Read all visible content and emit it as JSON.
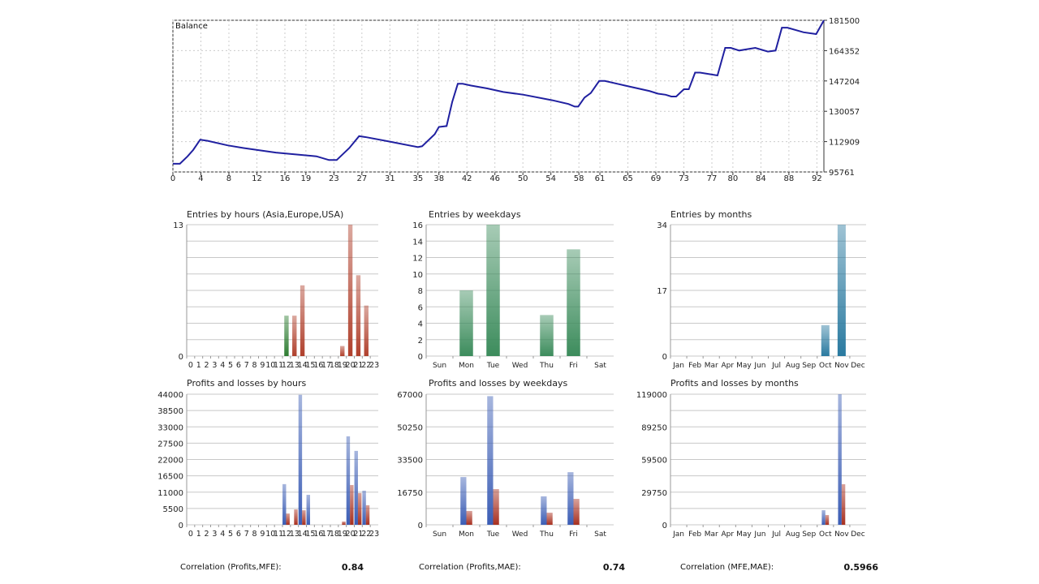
{
  "colors": {
    "balance_line": "#2020a0",
    "profit": "#3b5db5",
    "loss": "#a83020",
    "entries_asia": "#2e7d32",
    "entries_other": "#b0402c",
    "weekday_bar": "#3c8c5c",
    "month_bar": "#2a7aa0"
  },
  "correlations": [
    {
      "label": "Correlation (Profits,MFE):",
      "value": "0.84"
    },
    {
      "label": "Correlation (Profits,MAE):",
      "value": "0.74"
    },
    {
      "label": "Correlation (MFE,MAE):",
      "value": "0.5966"
    }
  ],
  "chart_data": [
    {
      "id": "balance",
      "type": "line",
      "title": "Balance",
      "grid": true,
      "xlim": [
        0,
        93
      ],
      "ylim": [
        95761,
        181500
      ],
      "xticks": [
        "0",
        "4",
        "8",
        "12",
        "16",
        "19",
        "23",
        "27",
        "31",
        "35",
        "38",
        "42",
        "46",
        "50",
        "54",
        "58",
        "61",
        "65",
        "69",
        "73",
        "77",
        "80",
        "84",
        "88",
        "92"
      ],
      "yticks": [
        "181500",
        "164352",
        "147204",
        "130057",
        "112909",
        "95761"
      ],
      "series": [
        {
          "points": [
            [
              0,
              100400
            ],
            [
              1,
              100400
            ],
            [
              2.1,
              104600
            ],
            [
              2.9,
              108200
            ],
            [
              3.9,
              114000
            ],
            [
              4.9,
              113400
            ],
            [
              7.8,
              110800
            ],
            [
              10.1,
              109300
            ],
            [
              14.7,
              106700
            ],
            [
              20.5,
              104600
            ],
            [
              22.3,
              102500
            ],
            [
              23.4,
              102500
            ],
            [
              25.2,
              109300
            ],
            [
              26.6,
              116000
            ],
            [
              27.5,
              115500
            ],
            [
              31,
              112900
            ],
            [
              35,
              109800
            ],
            [
              35.6,
              110300
            ],
            [
              37.4,
              117100
            ],
            [
              38,
              121200
            ],
            [
              39.1,
              121700
            ],
            [
              39.9,
              135300
            ],
            [
              40.7,
              145600
            ],
            [
              41.4,
              145600
            ],
            [
              42.6,
              144600
            ],
            [
              44.9,
              143000
            ],
            [
              47.2,
              141000
            ],
            [
              50.1,
              139400
            ],
            [
              54.2,
              136300
            ],
            [
              56.5,
              134200
            ],
            [
              57.4,
              132700
            ],
            [
              57.9,
              132700
            ],
            [
              58.8,
              137800
            ],
            [
              59.7,
              140400
            ],
            [
              60.9,
              147200
            ],
            [
              61.7,
              147200
            ],
            [
              64.6,
              144600
            ],
            [
              68.1,
              141500
            ],
            [
              69.3,
              140000
            ],
            [
              70.4,
              139400
            ],
            [
              71.2,
              138400
            ],
            [
              71.9,
              138400
            ],
            [
              73,
              142500
            ],
            [
              73.7,
              142500
            ],
            [
              74.6,
              151900
            ],
            [
              75.3,
              151900
            ],
            [
              77.8,
              150300
            ],
            [
              78.9,
              165900
            ],
            [
              79.7,
              165900
            ],
            [
              80.9,
              164400
            ],
            [
              83.2,
              165900
            ],
            [
              85,
              163800
            ],
            [
              86.1,
              164400
            ],
            [
              87,
              177300
            ],
            [
              87.8,
              177300
            ],
            [
              90.1,
              174700
            ],
            [
              91.9,
              173700
            ],
            [
              93,
              181500
            ]
          ]
        }
      ]
    },
    {
      "id": "entries_hours",
      "type": "bar",
      "title": "Entries by hours (Asia,Europe,USA)",
      "ylim": [
        0,
        13
      ],
      "yticks": [
        "13",
        "0"
      ],
      "categories": [
        "0",
        "1",
        "2",
        "3",
        "4",
        "5",
        "6",
        "7",
        "8",
        "9",
        "10",
        "11",
        "12",
        "13",
        "14",
        "15",
        "16",
        "17",
        "18",
        "19",
        "20",
        "21",
        "22",
        "23"
      ],
      "values": [
        0,
        0,
        0,
        0,
        0,
        0,
        0,
        0,
        0,
        0,
        0,
        0,
        4,
        4,
        7,
        0,
        0,
        0,
        0,
        1,
        13,
        8,
        5,
        0
      ],
      "bar_colors": {
        "12": "entries_asia"
      }
    },
    {
      "id": "entries_weekdays",
      "type": "bar",
      "title": "Entries by weekdays",
      "ylim": [
        0,
        16
      ],
      "yticks": [
        "16",
        "14",
        "12",
        "10",
        "8",
        "6",
        "4",
        "2",
        "0"
      ],
      "categories": [
        "Sun",
        "Mon",
        "Tue",
        "Wed",
        "Thu",
        "Fri",
        "Sat"
      ],
      "values": [
        0,
        8,
        16,
        0,
        5,
        13,
        0
      ]
    },
    {
      "id": "entries_months",
      "type": "bar",
      "title": "Entries by months",
      "ylim": [
        0,
        34
      ],
      "yticks": [
        "34",
        "17",
        "0"
      ],
      "categories": [
        "Jan",
        "Feb",
        "Mar",
        "Apr",
        "May",
        "Jun",
        "Jul",
        "Aug",
        "Sep",
        "Oct",
        "Nov",
        "Dec"
      ],
      "values": [
        0,
        0,
        0,
        0,
        0,
        0,
        0,
        0,
        0,
        8,
        34,
        0
      ]
    },
    {
      "id": "pl_hours",
      "type": "bar",
      "title": "Profits and losses by hours",
      "ylim": [
        0,
        44000
      ],
      "yticks": [
        "44000",
        "38500",
        "33000",
        "27500",
        "22000",
        "16500",
        "11000",
        "5500",
        "0"
      ],
      "categories": [
        "0",
        "1",
        "2",
        "3",
        "4",
        "5",
        "6",
        "7",
        "8",
        "9",
        "10",
        "11",
        "12",
        "13",
        "14",
        "15",
        "16",
        "17",
        "18",
        "19",
        "20",
        "21",
        "22",
        "23"
      ],
      "series": [
        {
          "values": [
            0,
            0,
            0,
            0,
            0,
            0,
            0,
            0,
            0,
            0,
            0,
            0,
            13700,
            0,
            43800,
            10100,
            0,
            0,
            0,
            0,
            29800,
            24900,
            11500,
            0
          ]
        },
        {
          "values": [
            0,
            0,
            0,
            0,
            0,
            0,
            0,
            0,
            0,
            0,
            0,
            0,
            3800,
            5200,
            4900,
            0,
            0,
            0,
            0,
            1100,
            13400,
            10700,
            6600,
            0
          ]
        }
      ]
    },
    {
      "id": "pl_weekdays",
      "type": "bar",
      "title": "Profits and losses by weekdays",
      "ylim": [
        0,
        67000
      ],
      "yticks": [
        "67000",
        "",
        "50250",
        "",
        "33500",
        "",
        "16750",
        "",
        "0"
      ],
      "categories": [
        "Sun",
        "Mon",
        "Tue",
        "Wed",
        "Thu",
        "Fri",
        "Sat"
      ],
      "series": [
        {
          "values": [
            0,
            24500,
            66000,
            0,
            14600,
            27000,
            0
          ]
        },
        {
          "values": [
            0,
            7100,
            18300,
            0,
            6200,
            13300,
            0
          ]
        }
      ]
    },
    {
      "id": "pl_months",
      "type": "bar",
      "title": "Profits and losses by months",
      "ylim": [
        0,
        119000
      ],
      "yticks": [
        "119000",
        "",
        "89250",
        "",
        "59500",
        "",
        "29750",
        "",
        "0"
      ],
      "categories": [
        "Jan",
        "Feb",
        "Mar",
        "Apr",
        "May",
        "Jun",
        "Jul",
        "Aug",
        "Sep",
        "Oct",
        "Nov",
        "Dec"
      ],
      "series": [
        {
          "values": [
            0,
            0,
            0,
            0,
            0,
            0,
            0,
            0,
            0,
            13300,
            119000,
            0
          ]
        },
        {
          "values": [
            0,
            0,
            0,
            0,
            0,
            0,
            0,
            0,
            0,
            8900,
            37000,
            0
          ]
        }
      ]
    }
  ]
}
